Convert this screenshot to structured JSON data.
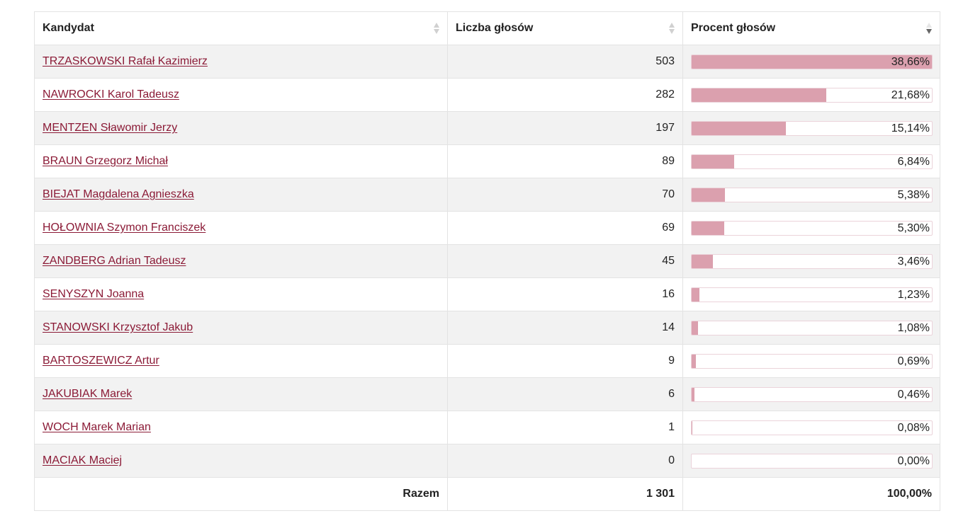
{
  "table": {
    "headers": {
      "candidate": "Kandydat",
      "votes": "Liczba głosów",
      "percent": "Procent głosów"
    },
    "rows": [
      {
        "name": "TRZASKOWSKI Rafał Kazimierz",
        "votes": "503",
        "percent_label": "38,66%",
        "fill_percent": 100
      },
      {
        "name": "NAWROCKI Karol Tadeusz",
        "votes": "282",
        "percent_label": "21,68%",
        "fill_percent": 56.1
      },
      {
        "name": "MENTZEN Sławomir Jerzy",
        "votes": "197",
        "percent_label": "15,14%",
        "fill_percent": 39.2
      },
      {
        "name": "BRAUN Grzegorz Michał",
        "votes": "89",
        "percent_label": "6,84%",
        "fill_percent": 17.7
      },
      {
        "name": "BIEJAT Magdalena Agnieszka",
        "votes": "70",
        "percent_label": "5,38%",
        "fill_percent": 13.9
      },
      {
        "name": "HOŁOWNIA Szymon Franciszek",
        "votes": "69",
        "percent_label": "5,30%",
        "fill_percent": 13.7
      },
      {
        "name": "ZANDBERG Adrian Tadeusz",
        "votes": "45",
        "percent_label": "3,46%",
        "fill_percent": 8.9
      },
      {
        "name": "SENYSZYN Joanna",
        "votes": "16",
        "percent_label": "1,23%",
        "fill_percent": 3.2
      },
      {
        "name": "STANOWSKI Krzysztof Jakub",
        "votes": "14",
        "percent_label": "1,08%",
        "fill_percent": 2.8
      },
      {
        "name": "BARTOSZEWICZ Artur",
        "votes": "9",
        "percent_label": "0,69%",
        "fill_percent": 1.8
      },
      {
        "name": "JAKUBIAK Marek",
        "votes": "6",
        "percent_label": "0,46%",
        "fill_percent": 1.2
      },
      {
        "name": "WOCH Marek Marian",
        "votes": "1",
        "percent_label": "0,08%",
        "fill_percent": 0.2
      },
      {
        "name": "MACIAK Maciej",
        "votes": "0",
        "percent_label": "0,00%",
        "fill_percent": 0
      }
    ],
    "footer": {
      "label": "Razem",
      "votes": "1 301",
      "percent": "100,00%"
    }
  },
  "colors": {
    "link": "#8b1a36",
    "bar_fill": "#dba0ae",
    "row_stripe": "#f2f2f2"
  },
  "icons": {
    "candidate_sort": "sort-neutral-icon",
    "votes_sort": "sort-neutral-icon",
    "percent_sort": "sort-desc-icon"
  }
}
